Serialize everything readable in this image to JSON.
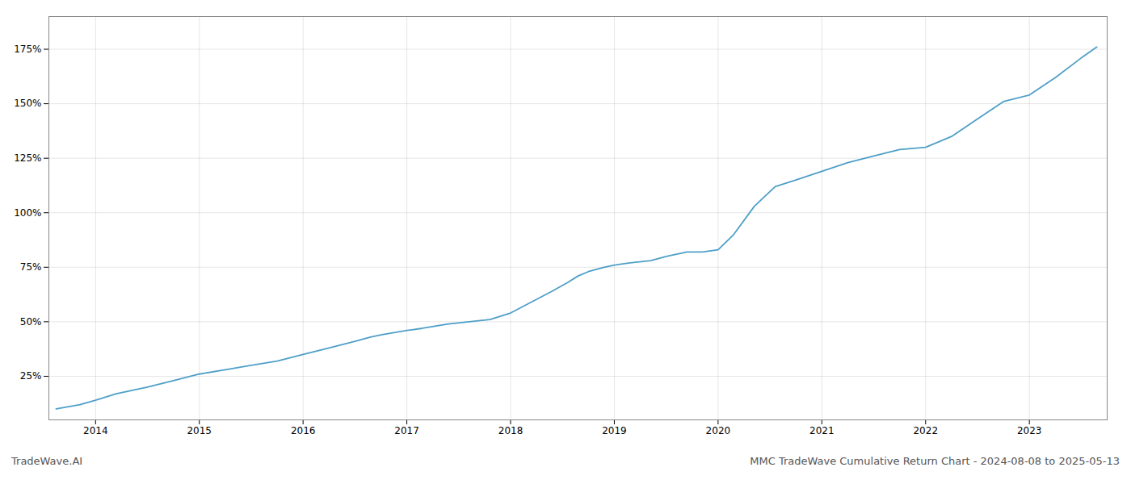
{
  "chart_data": {
    "type": "line",
    "title": "MMC TradeWave Cumulative Return Chart - 2024-08-08 to 2025-05-13",
    "annotations": [
      "TradeWave.AI"
    ],
    "x": [
      2013.62,
      2013.85,
      2014.0,
      2014.2,
      2014.5,
      2014.75,
      2015.0,
      2015.25,
      2015.5,
      2015.75,
      2016.0,
      2016.25,
      2016.5,
      2016.65,
      2016.75,
      2017.0,
      2017.15,
      2017.4,
      2017.6,
      2017.8,
      2018.0,
      2018.2,
      2018.4,
      2018.55,
      2018.65,
      2018.75,
      2018.9,
      2019.0,
      2019.15,
      2019.35,
      2019.5,
      2019.6,
      2019.7,
      2019.85,
      2020.0,
      2020.15,
      2020.35,
      2020.55,
      2020.75,
      2021.0,
      2021.25,
      2021.5,
      2021.75,
      2022.0,
      2022.25,
      2022.5,
      2022.75,
      2023.0,
      2023.25,
      2023.5,
      2023.65
    ],
    "values": [
      10,
      12,
      14,
      17,
      20,
      23,
      26,
      28,
      30,
      32,
      35,
      38,
      41,
      43,
      44,
      46,
      47,
      49,
      50,
      51,
      54,
      59,
      64,
      68,
      71,
      73,
      75,
      76,
      77,
      78,
      80,
      81,
      82,
      82,
      83,
      90,
      103,
      112,
      115,
      119,
      123,
      126,
      129,
      130,
      135,
      143,
      151,
      154,
      162,
      171,
      176
    ],
    "color": "#4f9fc8",
    "xlim": [
      2013.55,
      2023.75
    ],
    "xticks": [
      2014,
      2015,
      2016,
      2017,
      2018,
      2019,
      2020,
      2021,
      2022,
      2023
    ],
    "ylim": [
      5,
      190
    ],
    "yticks": [
      {
        "value": 25,
        "label": "25%"
      },
      {
        "value": 50,
        "label": "50%"
      },
      {
        "value": 75,
        "label": "75%"
      },
      {
        "value": 100,
        "label": "100%"
      },
      {
        "value": 125,
        "label": "125%"
      },
      {
        "value": 150,
        "label": "150%"
      },
      {
        "value": 175,
        "label": "175%"
      }
    ],
    "grid": true
  }
}
